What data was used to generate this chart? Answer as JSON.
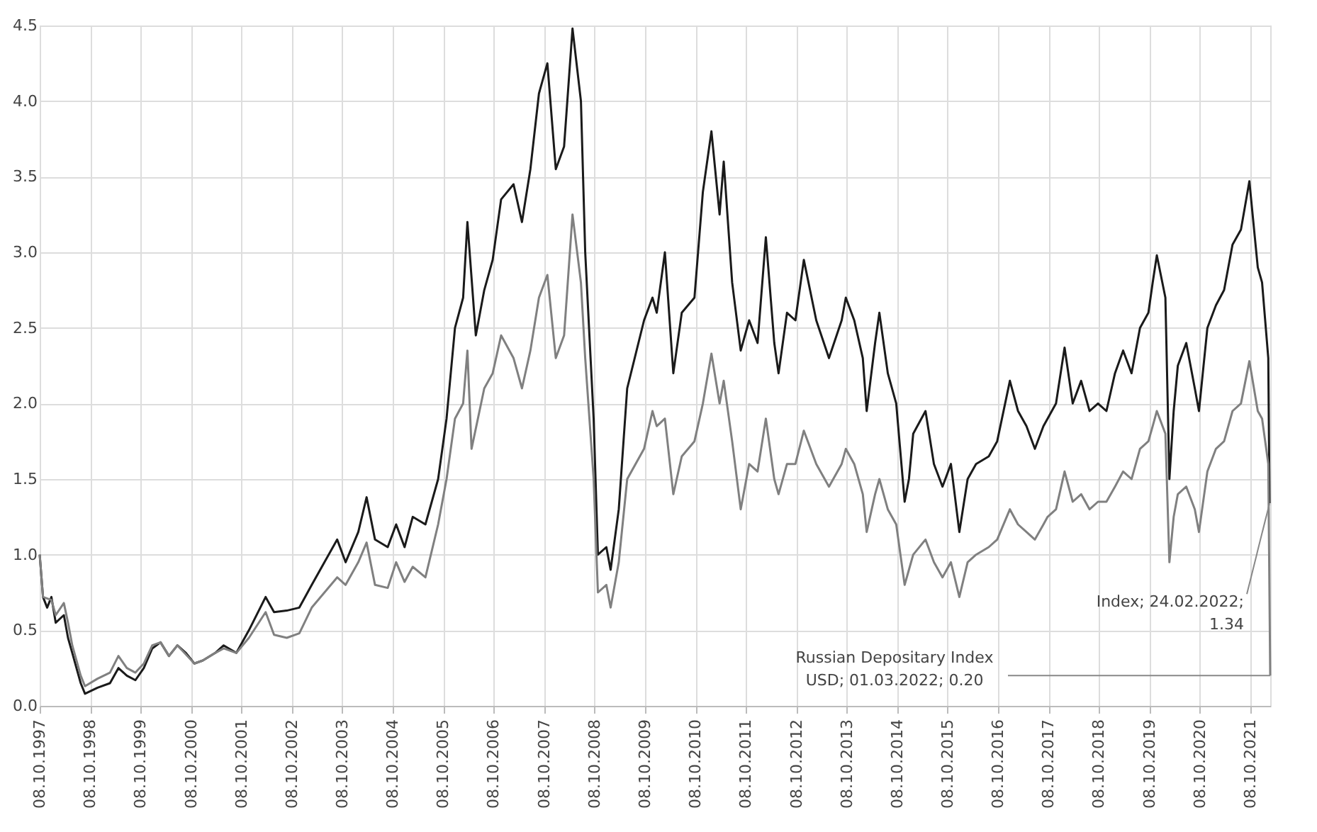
{
  "chart_data": {
    "type": "line",
    "series": [
      {
        "color": "#1a1a1a",
        "x": [
          "1997-10-08",
          "1997-11",
          "1997-12",
          "1998-01",
          "1998-02",
          "1998-04",
          "1998-05",
          "1998-06",
          "1998-08",
          "1998-09",
          "1998-12",
          "1999-03",
          "1999-05",
          "1999-07",
          "1999-09",
          "1999-11",
          "2000-01",
          "2000-03",
          "2000-05",
          "2000-07",
          "2000-09",
          "2000-11",
          "2001-01",
          "2001-04",
          "2001-06",
          "2001-09",
          "2001-12",
          "2002-04",
          "2002-06",
          "2002-09",
          "2002-12",
          "2003-03",
          "2003-06",
          "2003-09",
          "2003-11",
          "2004-02",
          "2004-04",
          "2004-06",
          "2004-09",
          "2004-11",
          "2005-01",
          "2005-03",
          "2005-06",
          "2005-09",
          "2005-11",
          "2006-01",
          "2006-03",
          "2006-04",
          "2006-06",
          "2006-08",
          "2006-10",
          "2006-12",
          "2007-03",
          "2007-05",
          "2007-07",
          "2007-09",
          "2007-11",
          "2008-01",
          "2008-03",
          "2008-05",
          "2008-07",
          "2008-08",
          "2008-10",
          "2008-11",
          "2009-01",
          "2009-02",
          "2009-04",
          "2009-06",
          "2009-10",
          "2009-12",
          "2010-01",
          "2010-03",
          "2010-05",
          "2010-07",
          "2010-10",
          "2010-12",
          "2011-02",
          "2011-04",
          "2011-05",
          "2011-07",
          "2011-09",
          "2011-11",
          "2012-01",
          "2012-03",
          "2012-05",
          "2012-06",
          "2012-08",
          "2012-10",
          "2012-12",
          "2013-03",
          "2013-06",
          "2013-09",
          "2013-10",
          "2013-12",
          "2014-02",
          "2014-03",
          "2014-05",
          "2014-06",
          "2014-08",
          "2014-10",
          "2014-12",
          "2015-01",
          "2015-02",
          "2015-05",
          "2015-07",
          "2015-09",
          "2015-11",
          "2016-01",
          "2016-03",
          "2016-05",
          "2016-08",
          "2016-10",
          "2017-01",
          "2017-03",
          "2017-05",
          "2017-07",
          "2017-09",
          "2017-10",
          "2017-12",
          "2018-02",
          "2018-04",
          "2018-06",
          "2018-08",
          "2018-10",
          "2018-12",
          "2019-02",
          "2019-04",
          "2019-06",
          "2019-08",
          "2019-10",
          "2019-11",
          "2019-12",
          "2020-02",
          "2020-03",
          "2020-04",
          "2020-05",
          "2020-07",
          "2020-09",
          "2020-10",
          "2020-12",
          "2021-02",
          "2021-04",
          "2021-06",
          "2021-08",
          "2021-10",
          "2021-12",
          "2022-01",
          "2022-02-15",
          "2022-02-24"
        ],
        "values": [
          1.0,
          0.72,
          0.65,
          0.72,
          0.55,
          0.6,
          0.45,
          0.35,
          0.15,
          0.08,
          0.12,
          0.15,
          0.25,
          0.2,
          0.17,
          0.25,
          0.38,
          0.42,
          0.33,
          0.4,
          0.35,
          0.28,
          0.3,
          0.35,
          0.4,
          0.35,
          0.5,
          0.72,
          0.62,
          0.63,
          0.65,
          0.8,
          0.95,
          1.1,
          0.95,
          1.15,
          1.38,
          1.1,
          1.05,
          1.2,
          1.05,
          1.25,
          1.2,
          1.5,
          1.9,
          2.5,
          2.7,
          3.2,
          2.45,
          2.75,
          2.95,
          3.35,
          3.45,
          3.2,
          3.55,
          4.05,
          4.25,
          3.55,
          3.7,
          4.48,
          4.0,
          3.0,
          1.9,
          1.0,
          1.05,
          0.9,
          1.3,
          2.1,
          2.55,
          2.7,
          2.6,
          3.0,
          2.2,
          2.6,
          2.7,
          3.4,
          3.8,
          3.25,
          3.6,
          2.8,
          2.35,
          2.55,
          2.4,
          3.1,
          2.4,
          2.2,
          2.6,
          2.55,
          2.95,
          2.55,
          2.3,
          2.55,
          2.7,
          2.55,
          2.3,
          1.95,
          2.4,
          2.6,
          2.2,
          2.0,
          1.35,
          1.5,
          1.8,
          1.95,
          1.6,
          1.45,
          1.6,
          1.15,
          1.5,
          1.6,
          1.65,
          1.75,
          2.15,
          1.95,
          1.85,
          1.7,
          1.85,
          1.9,
          2.0,
          2.37,
          2.0,
          2.15,
          1.95,
          2.0,
          1.95,
          2.2,
          2.35,
          2.2,
          2.5,
          2.6,
          2.8,
          2.98,
          2.7,
          1.5,
          1.95,
          2.25,
          2.4,
          2.1,
          1.95,
          2.5,
          2.65,
          2.75,
          3.05,
          3.15,
          3.47,
          2.9,
          2.8,
          2.3,
          1.34
        ]
      },
      {
        "color": "#808080",
        "x": [
          "1997-10-08",
          "1997-11",
          "1998-01",
          "1998-02",
          "1998-04",
          "1998-05",
          "1998-06",
          "1998-08",
          "1998-09",
          "1998-12",
          "1999-03",
          "1999-05",
          "1999-07",
          "1999-09",
          "1999-11",
          "2000-01",
          "2000-03",
          "2000-05",
          "2000-07",
          "2000-09",
          "2000-11",
          "2001-01",
          "2001-04",
          "2001-06",
          "2001-09",
          "2001-12",
          "2002-04",
          "2002-06",
          "2002-09",
          "2002-12",
          "2003-03",
          "2003-06",
          "2003-09",
          "2003-11",
          "2004-02",
          "2004-04",
          "2004-06",
          "2004-09",
          "2004-11",
          "2005-01",
          "2005-03",
          "2005-06",
          "2005-09",
          "2005-11",
          "2006-01",
          "2006-03",
          "2006-04",
          "2006-05",
          "2006-08",
          "2006-10",
          "2006-12",
          "2007-03",
          "2007-05",
          "2007-07",
          "2007-09",
          "2007-11",
          "2008-01",
          "2008-03",
          "2008-05",
          "2008-07",
          "2008-08",
          "2008-10",
          "2008-11",
          "2009-01",
          "2009-02",
          "2009-04",
          "2009-06",
          "2009-10",
          "2009-12",
          "2010-01",
          "2010-03",
          "2010-05",
          "2010-07",
          "2010-10",
          "2010-12",
          "2011-02",
          "2011-04",
          "2011-05",
          "2011-07",
          "2011-09",
          "2011-11",
          "2012-01",
          "2012-03",
          "2012-05",
          "2012-06",
          "2012-08",
          "2012-10",
          "2012-12",
          "2013-03",
          "2013-06",
          "2013-09",
          "2013-10",
          "2013-12",
          "2014-02",
          "2014-03",
          "2014-05",
          "2014-06",
          "2014-08",
          "2014-10",
          "2014-12",
          "2015-01",
          "2015-02",
          "2015-05",
          "2015-07",
          "2015-09",
          "2015-11",
          "2016-01",
          "2016-03",
          "2016-05",
          "2016-08",
          "2016-10",
          "2017-01",
          "2017-03",
          "2017-05",
          "2017-07",
          "2017-09",
          "2017-10",
          "2017-12",
          "2018-02",
          "2018-04",
          "2018-06",
          "2018-08",
          "2018-10",
          "2018-12",
          "2019-02",
          "2019-04",
          "2019-06",
          "2019-08",
          "2019-10",
          "2019-11",
          "2019-12",
          "2020-02",
          "2020-03",
          "2020-04",
          "2020-05",
          "2020-07",
          "2020-09",
          "2020-10",
          "2020-12",
          "2021-02",
          "2021-04",
          "2021-06",
          "2021-08",
          "2021-10",
          "2021-12",
          "2022-01",
          "2022-02-15",
          "2022-03-01"
        ],
        "values": [
          1.0,
          0.72,
          0.7,
          0.6,
          0.68,
          0.55,
          0.4,
          0.2,
          0.13,
          0.18,
          0.22,
          0.33,
          0.25,
          0.22,
          0.28,
          0.4,
          0.42,
          0.33,
          0.4,
          0.34,
          0.28,
          0.3,
          0.35,
          0.38,
          0.35,
          0.45,
          0.62,
          0.47,
          0.45,
          0.48,
          0.65,
          0.75,
          0.85,
          0.8,
          0.95,
          1.08,
          0.8,
          0.78,
          0.95,
          0.82,
          0.92,
          0.85,
          1.2,
          1.5,
          1.9,
          2.0,
          2.35,
          1.7,
          2.1,
          2.2,
          2.45,
          2.3,
          2.1,
          2.35,
          2.7,
          2.85,
          2.3,
          2.45,
          3.25,
          2.8,
          2.3,
          1.5,
          0.75,
          0.8,
          0.65,
          0.95,
          1.5,
          1.7,
          1.95,
          1.85,
          1.9,
          1.4,
          1.65,
          1.75,
          2.0,
          2.33,
          2.0,
          2.15,
          1.75,
          1.3,
          1.6,
          1.55,
          1.9,
          1.5,
          1.4,
          1.6,
          1.6,
          1.82,
          1.6,
          1.45,
          1.6,
          1.7,
          1.6,
          1.4,
          1.15,
          1.4,
          1.5,
          1.3,
          1.2,
          0.8,
          0.9,
          1.0,
          1.1,
          0.95,
          0.85,
          0.95,
          0.72,
          0.95,
          1.0,
          1.05,
          1.1,
          1.3,
          1.2,
          1.15,
          1.1,
          1.2,
          1.25,
          1.3,
          1.55,
          1.35,
          1.4,
          1.3,
          1.35,
          1.35,
          1.45,
          1.55,
          1.5,
          1.7,
          1.75,
          1.85,
          1.95,
          1.8,
          0.95,
          1.25,
          1.4,
          1.45,
          1.3,
          1.15,
          1.55,
          1.7,
          1.75,
          1.95,
          2.0,
          2.28,
          1.95,
          1.9,
          1.6,
          0.2
        ]
      }
    ],
    "xlim": [
      "1997-10-08",
      "2022-03-01"
    ],
    "xticks": [
      {
        "value": "1997-10-08",
        "label": "08.10.1997"
      },
      {
        "value": "1998-10-08",
        "label": "08.10.1998"
      },
      {
        "value": "1999-10-08",
        "label": "08.10.1999"
      },
      {
        "value": "2000-10-08",
        "label": "08.10.2000"
      },
      {
        "value": "2001-10-08",
        "label": "08.10.2001"
      },
      {
        "value": "2002-10-08",
        "label": "08.10.2002"
      },
      {
        "value": "2003-10-08",
        "label": "08.10.2003"
      },
      {
        "value": "2004-10-08",
        "label": "08.10.2004"
      },
      {
        "value": "2005-10-08",
        "label": "08.10.2005"
      },
      {
        "value": "2006-10-08",
        "label": "08.10.2006"
      },
      {
        "value": "2007-10-08",
        "label": "08.10.2007"
      },
      {
        "value": "2008-10-08",
        "label": "08.10.2008"
      },
      {
        "value": "2009-10-08",
        "label": "08.10.2009"
      },
      {
        "value": "2010-10-08",
        "label": "08.10.2010"
      },
      {
        "value": "2011-10-08",
        "label": "08.10.2011"
      },
      {
        "value": "2012-10-08",
        "label": "08.10.2012"
      },
      {
        "value": "2013-10-08",
        "label": "08.10.2013"
      },
      {
        "value": "2014-10-08",
        "label": "08.10.2014"
      },
      {
        "value": "2015-10-08",
        "label": "08.10.2015"
      },
      {
        "value": "2016-10-08",
        "label": "08.10.2016"
      },
      {
        "value": "2017-10-08",
        "label": "08.10.2017"
      },
      {
        "value": "2018-10-08",
        "label": "08.10.2018"
      },
      {
        "value": "2019-10-08",
        "label": "08.10.2019"
      },
      {
        "value": "2020-10-08",
        "label": "08.10.2020"
      },
      {
        "value": "2021-10-08",
        "label": "08.10.2021"
      }
    ],
    "ylim": [
      0,
      4.5
    ],
    "yticks": [
      {
        "value": 0,
        "label": "0.0"
      },
      {
        "value": 0.5,
        "label": "0.5"
      },
      {
        "value": 1,
        "label": "1.0"
      },
      {
        "value": 1.5,
        "label": "1.5"
      },
      {
        "value": 2,
        "label": "2.0"
      },
      {
        "value": 2.5,
        "label": "2.5"
      },
      {
        "value": 3,
        "label": "3.0"
      },
      {
        "value": 3.5,
        "label": "3.5"
      },
      {
        "value": 4,
        "label": "4.0"
      },
      {
        "value": 4.5,
        "label": "4.5"
      }
    ],
    "grid": true,
    "legend": false,
    "annotations": [
      {
        "text": "Index; 24.02.2022;\n1.34",
        "x": "2022-02-24",
        "y": 1.34
      },
      {
        "text": "Russian Depositary Index\nUSD; 01.03.2022; 0.20",
        "x": "2022-03-01",
        "y": 0.2
      }
    ]
  }
}
